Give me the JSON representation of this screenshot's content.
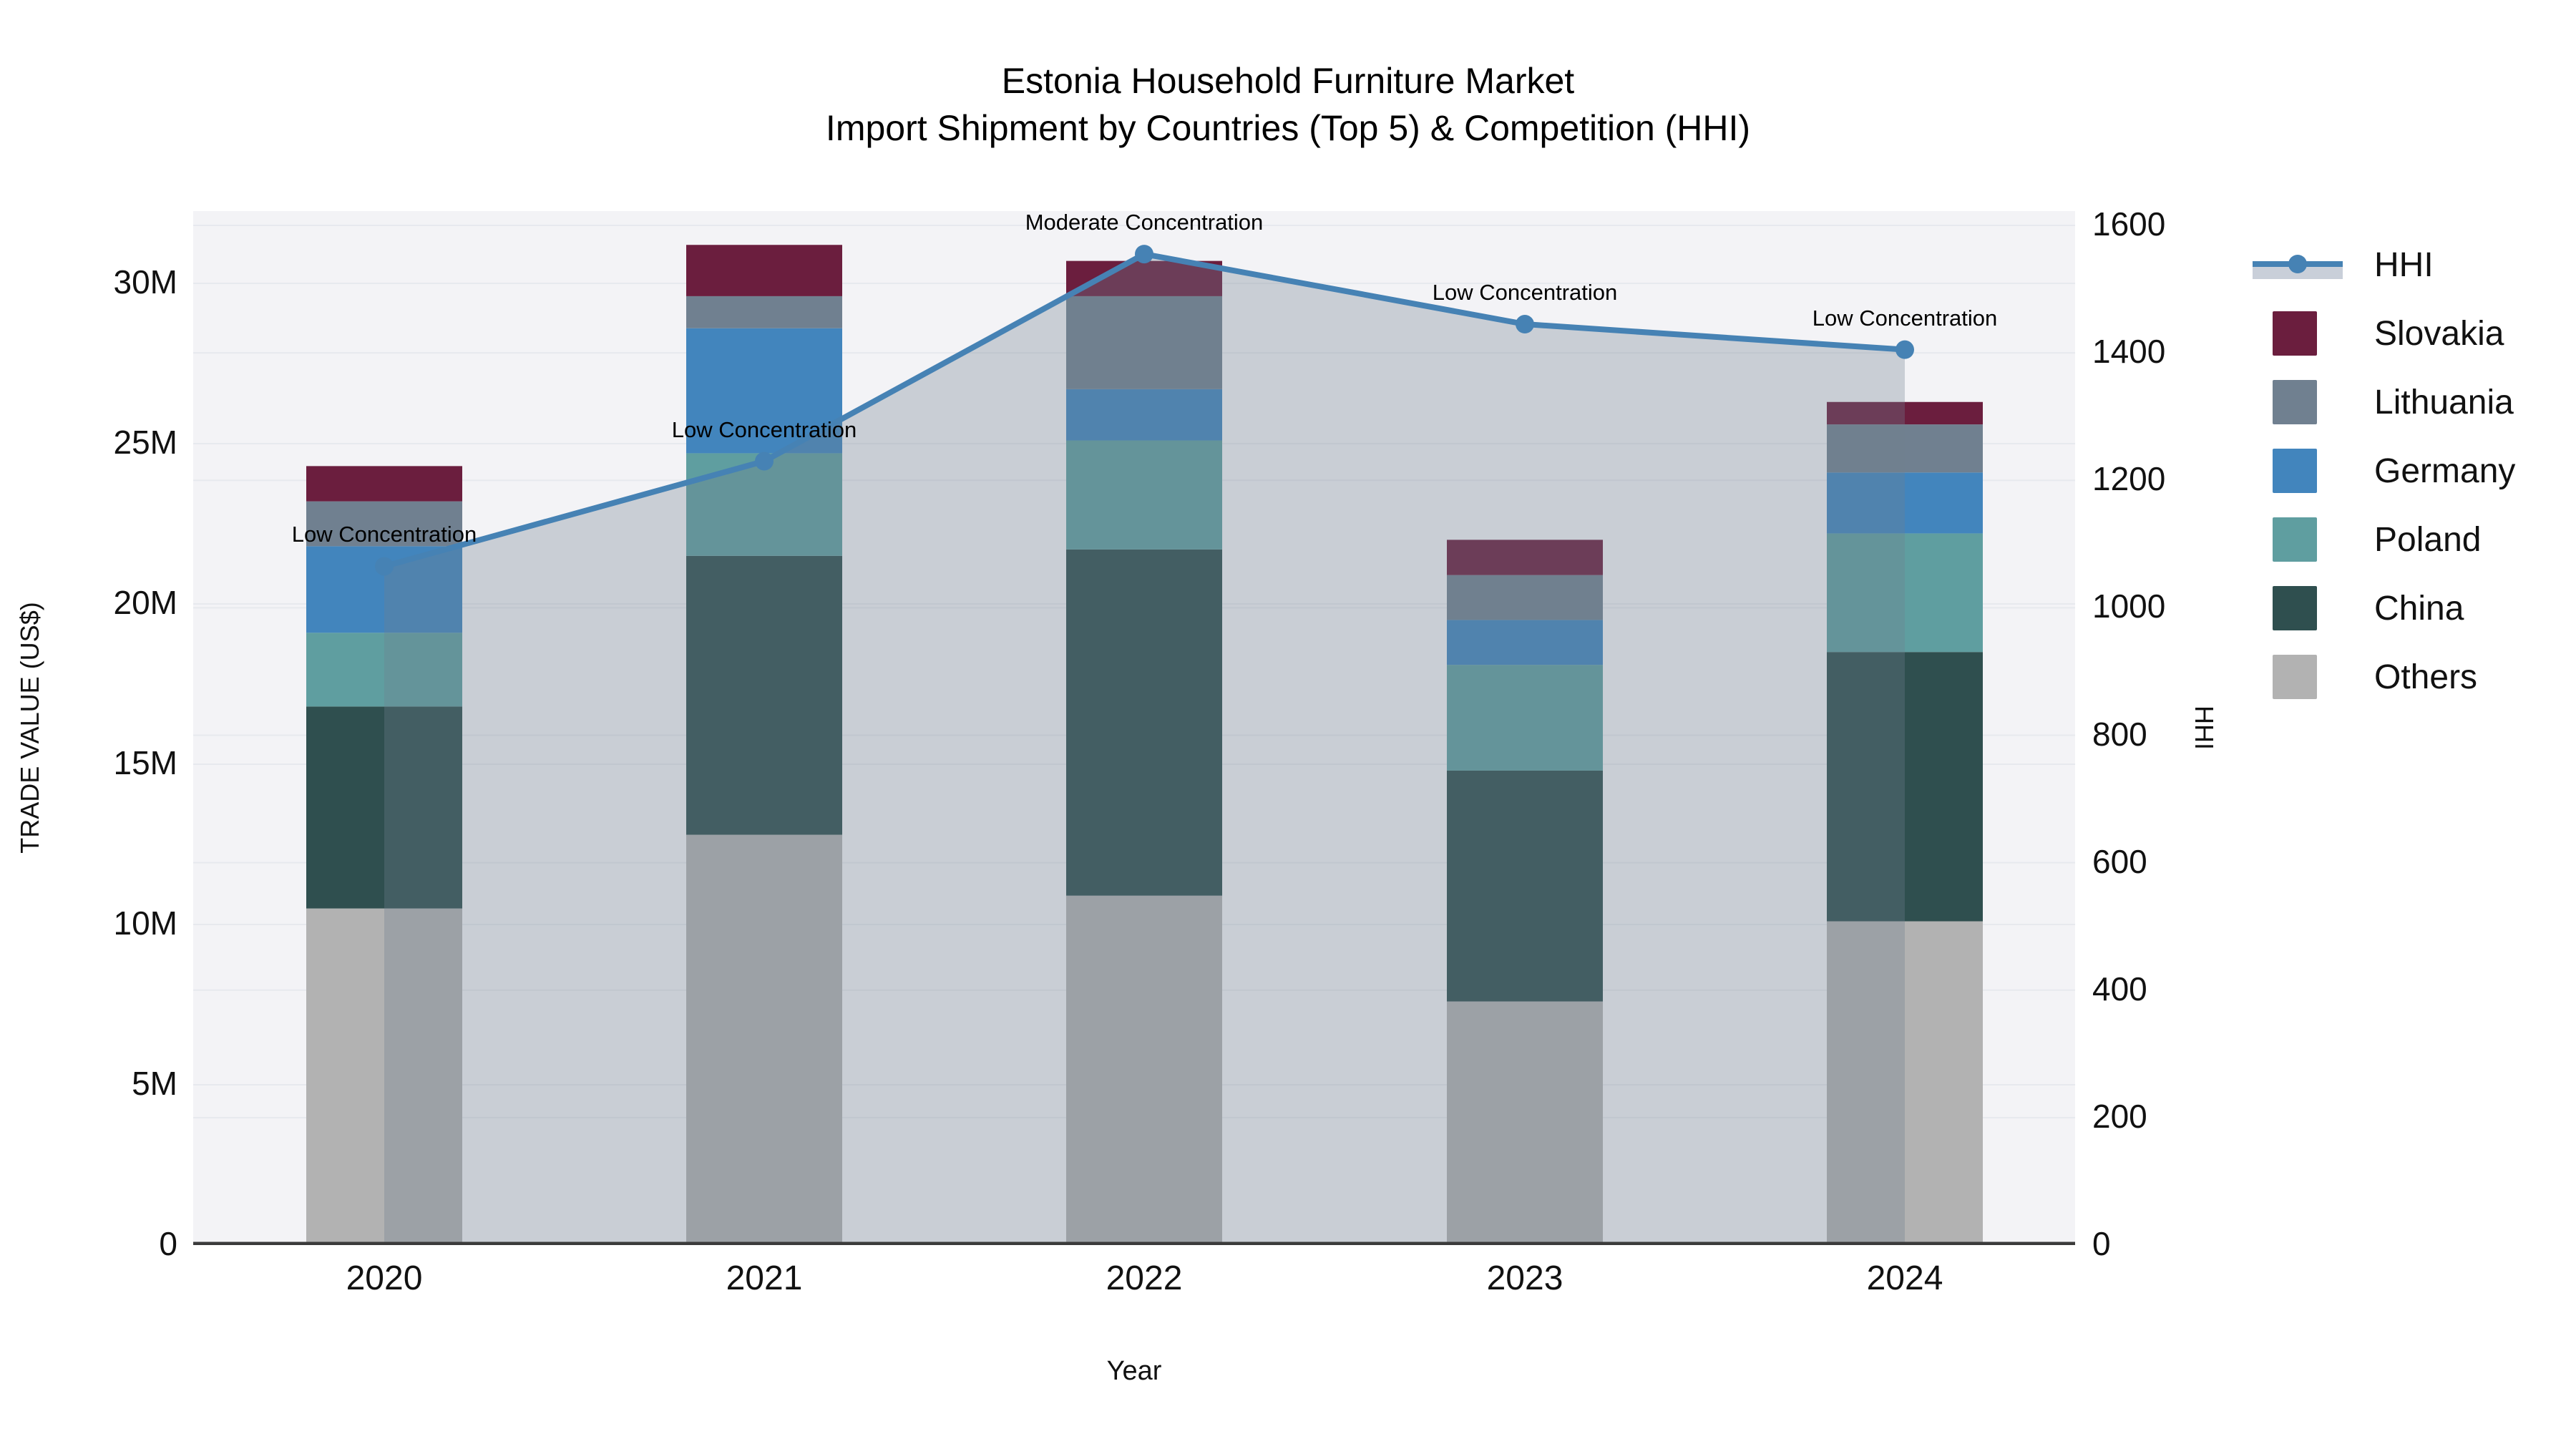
{
  "title": {
    "line1": "Estonia Household Furniture Market",
    "line2": "Import Shipment by Countries (Top 5) & Competition (HHI)"
  },
  "axes": {
    "y_left": {
      "label": "TRADE VALUE (US$)",
      "ticks": [
        {
          "value": 0,
          "text": "0"
        },
        {
          "value": 5,
          "text": "5M"
        },
        {
          "value": 10,
          "text": "10M"
        },
        {
          "value": 15,
          "text": "15M"
        },
        {
          "value": 20,
          "text": "20M"
        },
        {
          "value": 25,
          "text": "25M"
        },
        {
          "value": 30,
          "text": "30M"
        }
      ],
      "unit": "M US$"
    },
    "y_right": {
      "label": "HHI",
      "ticks": [
        {
          "value": 0,
          "text": "0"
        },
        {
          "value": 200,
          "text": "200"
        },
        {
          "value": 400,
          "text": "400"
        },
        {
          "value": 600,
          "text": "600"
        },
        {
          "value": 800,
          "text": "800"
        },
        {
          "value": 1000,
          "text": "1000"
        },
        {
          "value": 1200,
          "text": "1200"
        },
        {
          "value": 1400,
          "text": "1400"
        },
        {
          "value": 1600,
          "text": "1600"
        }
      ],
      "max": 1600
    },
    "x": {
      "label": "Year",
      "categories": [
        "2020",
        "2021",
        "2022",
        "2023",
        "2024"
      ]
    }
  },
  "chart_data": {
    "type": "composite",
    "charts": [
      {
        "type": "bar",
        "stacked": true,
        "categories": [
          "2020",
          "2021",
          "2022",
          "2023",
          "2024"
        ],
        "value_unit": "M US$",
        "series": [
          {
            "name": "Others",
            "color": "#b2b2b2",
            "values": [
              10.5,
              12.8,
              10.9,
              7.6,
              10.1
            ]
          },
          {
            "name": "China",
            "color": "#2f4f4f",
            "values": [
              6.3,
              8.7,
              10.8,
              7.2,
              8.4
            ]
          },
          {
            "name": "Poland",
            "color": "#5f9ea0",
            "values": [
              2.3,
              3.2,
              3.4,
              3.3,
              3.7
            ]
          },
          {
            "name": "Germany",
            "color": "#4285bd",
            "values": [
              2.7,
              3.9,
              1.6,
              1.4,
              1.9
            ]
          },
          {
            "name": "Lithuania",
            "color": "#708090",
            "values": [
              1.4,
              1.0,
              2.9,
              1.4,
              1.5
            ]
          },
          {
            "name": "Slovakia",
            "color": "#6b1e3e",
            "values": [
              1.1,
              1.6,
              1.1,
              1.1,
              0.7
            ]
          }
        ],
        "totals": [
          24.3,
          31.2,
          30.7,
          22.0,
          26.3
        ]
      },
      {
        "type": "line",
        "name": "HHI",
        "axis": "right",
        "color": "#4682b4",
        "area_fill": "rgba(112,128,144,0.32)",
        "x": [
          "2020",
          "2021",
          "2022",
          "2023",
          "2024"
        ],
        "values": [
          1065,
          1230,
          1555,
          1445,
          1405
        ]
      }
    ],
    "annotations": [
      {
        "x": "2020",
        "text": "Low Concentration"
      },
      {
        "x": "2021",
        "text": "Low Concentration"
      },
      {
        "x": "2022",
        "text": "Moderate Concentration"
      },
      {
        "x": "2023",
        "text": "Low Concentration"
      },
      {
        "x": "2024",
        "text": "Low Concentration"
      }
    ]
  },
  "legend": {
    "items": [
      {
        "label": "HHI",
        "type": "line",
        "color": "#4682b4"
      },
      {
        "label": "Slovakia",
        "type": "square",
        "color": "#6b1e3e"
      },
      {
        "label": "Lithuania",
        "type": "square",
        "color": "#708090"
      },
      {
        "label": "Germany",
        "type": "square",
        "color": "#4285bd"
      },
      {
        "label": "Poland",
        "type": "square",
        "color": "#5f9ea0"
      },
      {
        "label": "China",
        "type": "square",
        "color": "#2f4f4f"
      },
      {
        "label": "Others",
        "type": "square",
        "color": "#b2b2b2"
      }
    ]
  },
  "colors": {
    "plot_background": "#f3f3f6",
    "gridline": "#e7e9ee",
    "axis_line": "#3b3b3b",
    "text": "#111111",
    "hhi_line": "#4682b4",
    "hhi_area": "rgba(112,128,144,0.32)"
  }
}
